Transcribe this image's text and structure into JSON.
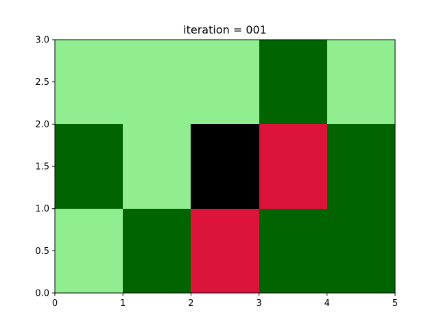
{
  "chart_data": {
    "type": "heatmap",
    "title": "iteration = 001",
    "xlabel": "",
    "ylabel": "",
    "xlim": [
      0,
      5
    ],
    "ylim": [
      0,
      3
    ],
    "x_ticks": [
      "0",
      "1",
      "2",
      "3",
      "4",
      "5"
    ],
    "y_ticks": [
      "0.0",
      "0.5",
      "1.0",
      "1.5",
      "2.0",
      "2.5",
      "3.0"
    ],
    "colors": {
      "light_green": "#90ee90",
      "dark_green": "#006400",
      "black": "#000000",
      "crimson": "#dc143c"
    },
    "grid": false,
    "cells_by_row_from_top": [
      [
        "light_green",
        "light_green",
        "light_green",
        "dark_green",
        "light_green"
      ],
      [
        "dark_green",
        "light_green",
        "black",
        "crimson",
        "dark_green"
      ],
      [
        "light_green",
        "dark_green",
        "crimson",
        "dark_green",
        "dark_green"
      ]
    ]
  }
}
